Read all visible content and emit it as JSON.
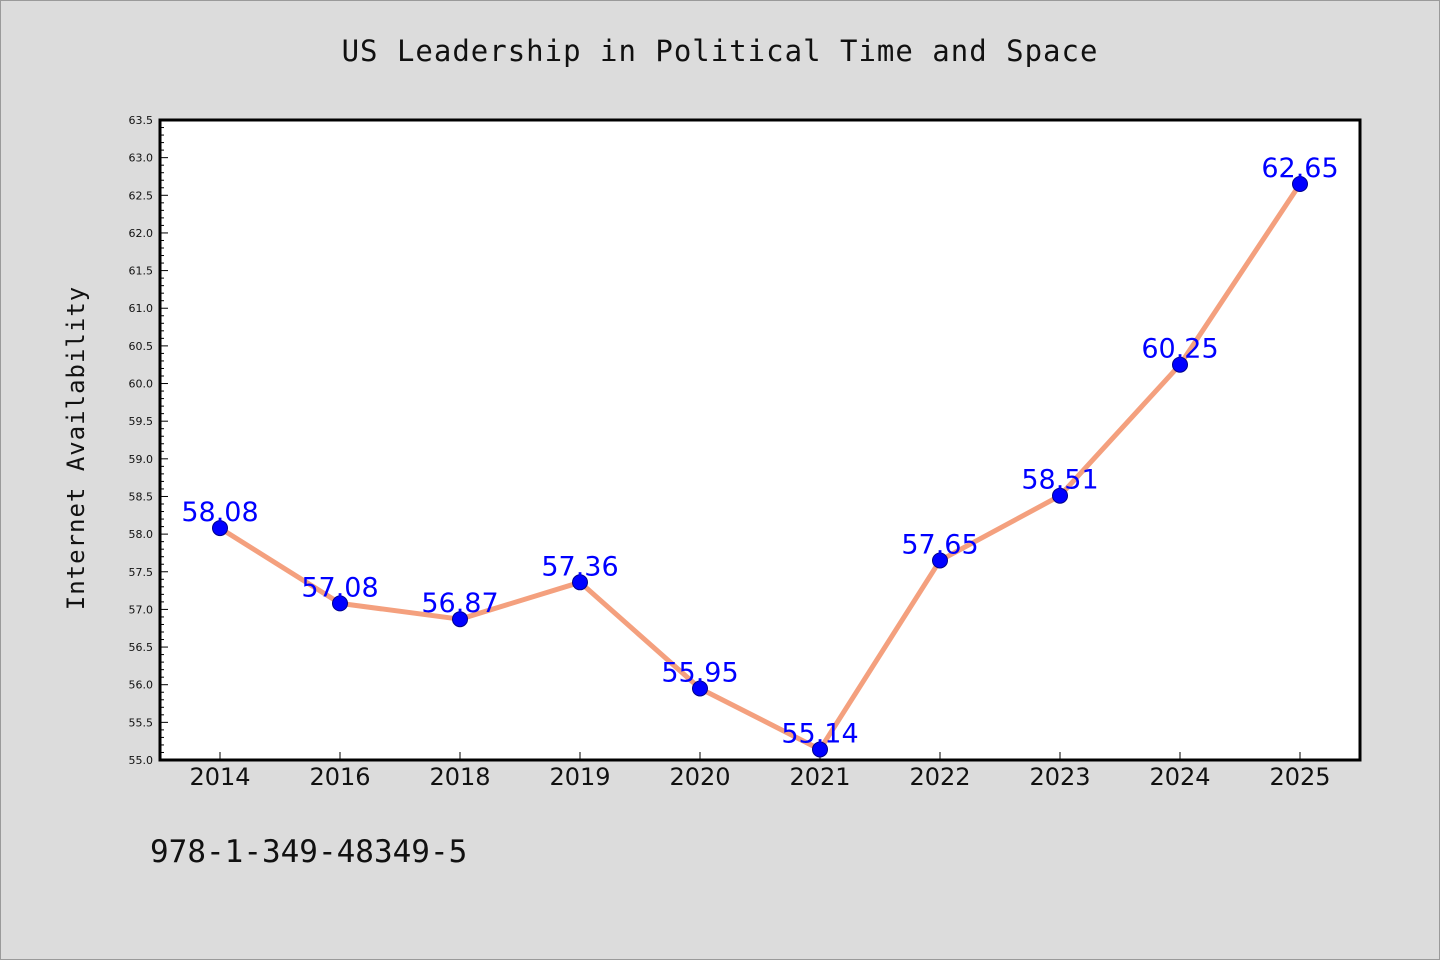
{
  "title": "US Leadership in Political Time and Space",
  "footer_text": "978-1-349-48349-5",
  "chart_data": {
    "type": "line",
    "title": "US Leadership in Political Time and Space",
    "xlabel": "",
    "ylabel": "Internet Availability",
    "categories": [
      "2014",
      "2016",
      "2018",
      "2019",
      "2020",
      "2021",
      "2022",
      "2023",
      "2024",
      "2025"
    ],
    "values": [
      58.08,
      57.08,
      56.87,
      57.36,
      55.95,
      55.14,
      57.65,
      58.51,
      60.25,
      62.65
    ],
    "data_labels": [
      "58.08",
      "57.08",
      "56.87",
      "57.36",
      "55.95",
      "55.14",
      "57.65",
      "58.51",
      "60.25",
      "62.65"
    ],
    "ylim": [
      55.0,
      63.5
    ],
    "yticks": [
      "55.0",
      "55.5",
      "56.0",
      "56.5",
      "57.0",
      "57.5",
      "58.0",
      "58.5",
      "59.0",
      "59.5",
      "60.0",
      "60.5",
      "61.0",
      "61.5",
      "62.0",
      "62.5",
      "63.0",
      "63.5"
    ],
    "grid": false,
    "line_color": "#f4a07e",
    "marker_color": "#0000ff",
    "label_color": "#0000ff",
    "plot_background": "#ffffff",
    "page_background": "#dcdcdc"
  }
}
